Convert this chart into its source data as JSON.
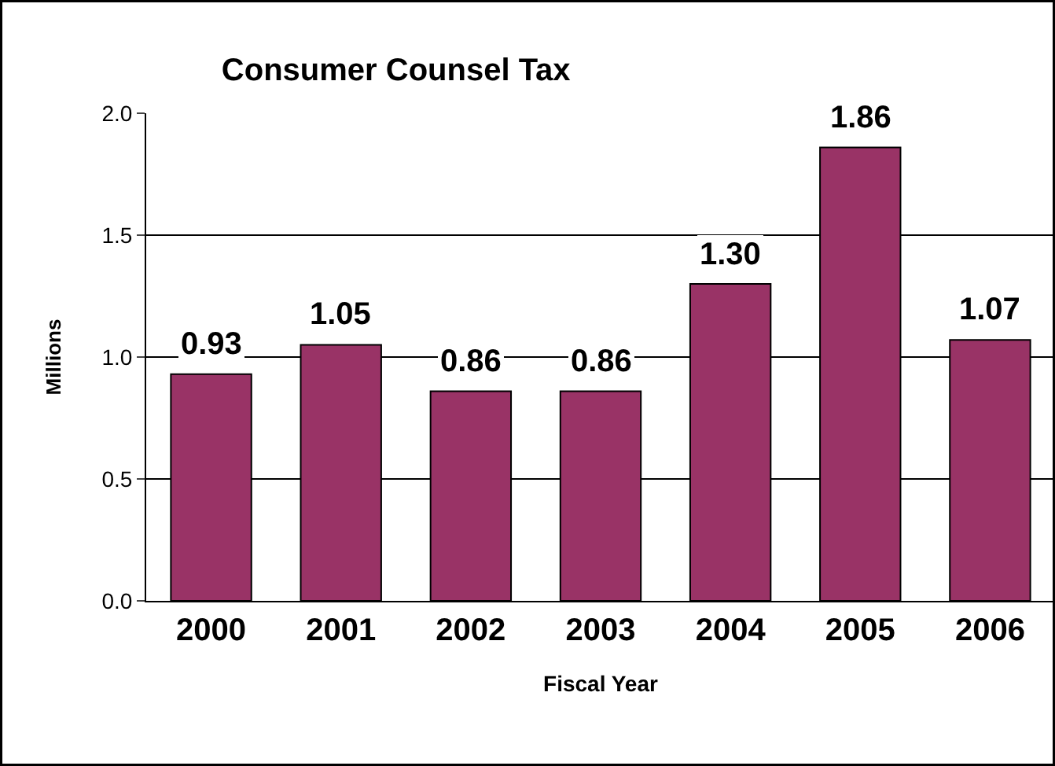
{
  "chart_data": {
    "type": "bar",
    "title": "Consumer Counsel Tax",
    "xlabel": "Fiscal Year",
    "ylabel": "Millions",
    "categories": [
      "2000",
      "2001",
      "2002",
      "2003",
      "2004",
      "2005",
      "2006"
    ],
    "values": [
      0.93,
      1.05,
      0.86,
      0.86,
      1.3,
      1.86,
      1.07
    ],
    "color": "#993366",
    "ylim": [
      0,
      2.0
    ],
    "yticks": [
      {
        "value": 0,
        "label": "0.0"
      },
      {
        "value": 0.5,
        "label": "0.5"
      },
      {
        "value": 1.0,
        "label": "1.0"
      },
      {
        "value": 1.5,
        "label": "1.5"
      },
      {
        "value": 2.0,
        "label": "2.0"
      }
    ],
    "value_labels": [
      "0.93",
      "1.05",
      "0.86",
      "0.86",
      "1.30",
      "1.86",
      "1.07"
    ],
    "grid": "y"
  }
}
